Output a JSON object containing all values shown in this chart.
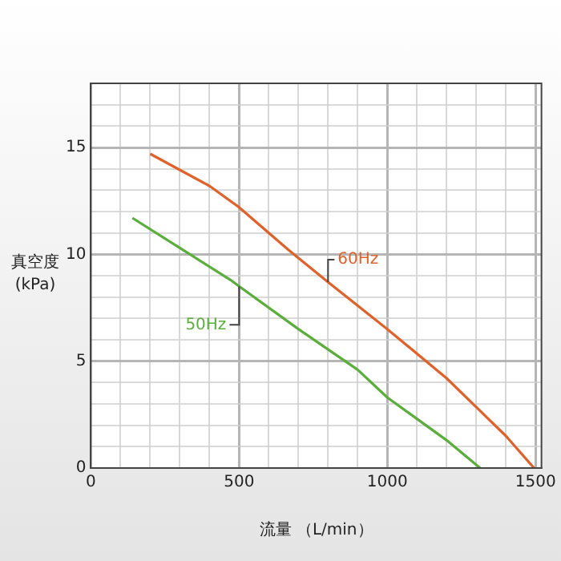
{
  "chart_data": {
    "type": "line",
    "xlabel": "流量 （L/min）",
    "ylabel": "真空度 (kPa)",
    "series": [
      {
        "name": "60Hz",
        "color": "#e0622a",
        "x": [
          200,
          400,
          500,
          667,
          800,
          1000,
          1200,
          1400,
          1495
        ],
        "values": [
          14.7,
          13.2,
          12.2,
          10.2,
          8.7,
          6.5,
          4.2,
          1.5,
          0
        ]
      },
      {
        "name": "50Hz",
        "color": "#5aae3c",
        "x": [
          140,
          300,
          471,
          500,
          700,
          900,
          1000,
          1100,
          1200,
          1313
        ],
        "values": [
          11.7,
          10.3,
          8.8,
          8.5,
          6.5,
          4.6,
          3.3,
          2.3,
          1.3,
          0
        ]
      }
    ],
    "xlim": [
      0,
      1520
    ],
    "ylim": [
      0,
      18
    ],
    "xticks": [
      0,
      {
        "value": 100,
        "label": null
      },
      {
        "value": 200,
        "label": null
      },
      {
        "value": 300,
        "label": null
      },
      {
        "value": 400,
        "label": null
      },
      500,
      {
        "value": 600,
        "label": null
      },
      {
        "value": 700,
        "label": null
      },
      {
        "value": 800,
        "label": null
      },
      {
        "value": 900,
        "label": null
      },
      1000,
      {
        "value": 1100,
        "label": null
      },
      {
        "value": 1200,
        "label": null
      },
      {
        "value": 1300,
        "label": null
      },
      {
        "value": 1400,
        "label": null
      },
      1500
    ],
    "yticks": [
      0,
      {
        "value": 1,
        "label": null
      },
      {
        "value": 2,
        "label": null
      },
      {
        "value": 3,
        "label": null
      },
      {
        "value": 4,
        "label": null
      },
      5,
      {
        "value": 6,
        "label": null
      },
      {
        "value": 7,
        "label": null
      },
      {
        "value": 8,
        "label": null
      },
      {
        "value": 9,
        "label": null
      },
      10,
      {
        "value": 11,
        "label": null
      },
      {
        "value": 12,
        "label": null
      },
      {
        "value": 13,
        "label": null
      },
      {
        "value": 14,
        "label": null
      },
      15,
      {
        "value": 16,
        "label": null
      },
      {
        "value": 17,
        "label": null
      }
    ],
    "grid": true,
    "legend": false,
    "marker": "none",
    "line_style": "solid"
  }
}
